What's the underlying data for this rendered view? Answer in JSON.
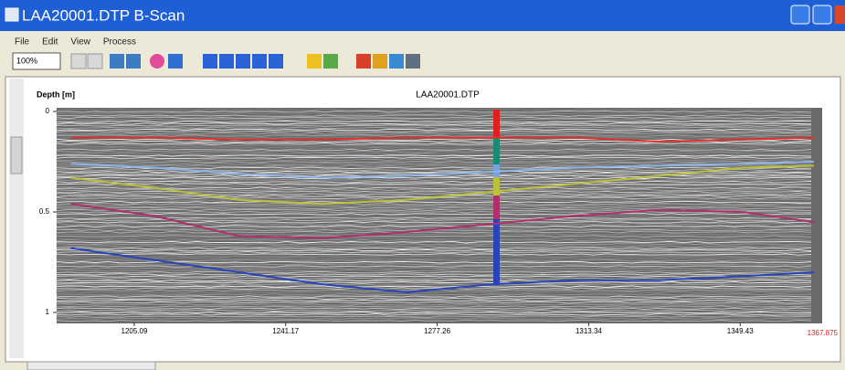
{
  "window": {
    "title": "LAA20001.DTP B-Scan"
  },
  "menu": [
    "File",
    "Edit",
    "View",
    "Process"
  ],
  "toolbar": {
    "zoom": "100%"
  },
  "plot": {
    "title": "LAA20001.DTP",
    "y_label": "Depth [m]",
    "ylim": [
      0,
      1.05
    ],
    "yticks": [
      0,
      0.5,
      1
    ],
    "xlim": [
      1186.6,
      1367.875
    ],
    "xticks": [
      1205.09,
      1241.17,
      1277.26,
      1313.34,
      1349.43
    ],
    "x": [
      1190,
      1210,
      1230,
      1250,
      1270,
      1290,
      1310,
      1330,
      1350,
      1367
    ],
    "series": [
      {
        "color": "#e0302a",
        "values": [
          0.13,
          0.13,
          0.14,
          0.14,
          0.13,
          0.13,
          0.13,
          0.15,
          0.14,
          0.13
        ]
      },
      {
        "color": "#8fb4e8",
        "values": [
          0.26,
          0.28,
          0.31,
          0.33,
          0.32,
          0.3,
          0.28,
          0.27,
          0.26,
          0.25
        ]
      },
      {
        "color": "#b8c23a",
        "values": [
          0.33,
          0.38,
          0.44,
          0.46,
          0.44,
          0.4,
          0.36,
          0.32,
          0.28,
          0.27
        ]
      },
      {
        "color": "#b0306a",
        "values": [
          0.46,
          0.52,
          0.62,
          0.63,
          0.6,
          0.56,
          0.52,
          0.49,
          0.5,
          0.55
        ]
      },
      {
        "color": "#2844b8",
        "values": [
          0.68,
          0.74,
          0.8,
          0.86,
          0.9,
          0.86,
          0.84,
          0.84,
          0.82,
          0.8
        ]
      }
    ]
  }
}
